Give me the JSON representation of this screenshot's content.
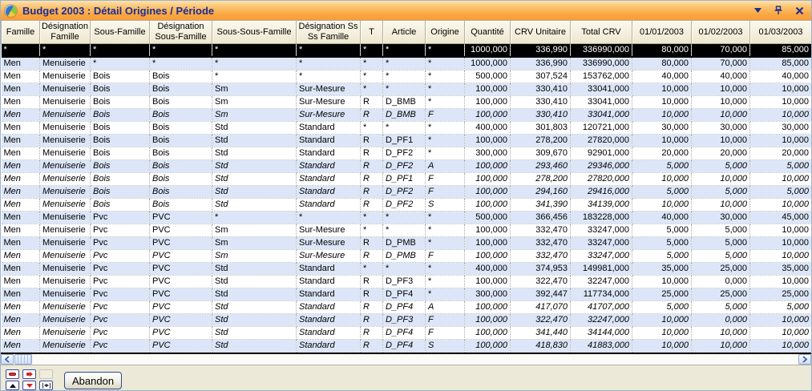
{
  "window": {
    "title": "Budget 2003 : Détail Origines / Période"
  },
  "icons": {
    "app_icon": "pie-chart",
    "menu_icon": "chevron-down",
    "pin_icon": "push-pin",
    "close_icon": "x",
    "scroll_left_icon": "chevron-left",
    "scroll_right_icon": "chevron-right",
    "nav_icons": [
      "red-dash",
      "red-arrow-right",
      "blank",
      "triangle-up",
      "red-triangle-down",
      "double-triangle-brackets"
    ]
  },
  "grid": {
    "columns": [
      "Famille",
      "Désignation Famille",
      "Sous-Famille",
      "Désignation Sous-Famille",
      "Sous-Sous-Famille",
      "Désignation Ss Ss Famille",
      "T",
      "Article",
      "Origine",
      "Quantité",
      "CRV Unitaire",
      "Total CRV",
      "01/01/2003",
      "01/02/2003",
      "01/03/2003"
    ],
    "rows": [
      {
        "style": "selected",
        "italic": false,
        "cells": [
          "*",
          "*",
          "*",
          "*",
          "*",
          "*",
          "*",
          "*",
          "*",
          "1000,000",
          "336,990",
          "336990,000",
          "80,000",
          "70,000",
          "85,000"
        ]
      },
      {
        "style": "blue",
        "italic": false,
        "cells": [
          "Men",
          "Menuiserie",
          "*",
          "*",
          "*",
          "*",
          "*",
          "*",
          "*",
          "1000,000",
          "336,990",
          "336990,000",
          "80,000",
          "70,000",
          "85,000"
        ]
      },
      {
        "style": "white",
        "italic": false,
        "cells": [
          "Men",
          "Menuiserie",
          "Bois",
          "Bois",
          "*",
          "*",
          "*",
          "*",
          "*",
          "500,000",
          "307,524",
          "153762,000",
          "40,000",
          "40,000",
          "40,000"
        ]
      },
      {
        "style": "blue",
        "italic": false,
        "cells": [
          "Men",
          "Menuiserie",
          "Bois",
          "Bois",
          "Sm",
          "Sur-Mesure",
          "*",
          "*",
          "*",
          "100,000",
          "330,410",
          "33041,000",
          "10,000",
          "10,000",
          "10,000"
        ]
      },
      {
        "style": "white",
        "italic": false,
        "cells": [
          "Men",
          "Menuiserie",
          "Bois",
          "Bois",
          "Sm",
          "Sur-Mesure",
          "R",
          "D_BMB",
          "*",
          "100,000",
          "330,410",
          "33041,000",
          "10,000",
          "10,000",
          "10,000"
        ]
      },
      {
        "style": "blue",
        "italic": true,
        "cells": [
          "Men",
          "Menuiserie",
          "Bois",
          "Bois",
          "Sm",
          "Sur-Mesure",
          "R",
          "D_BMB",
          "F",
          "100,000",
          "330,410",
          "33041,000",
          "10,000",
          "10,000",
          "10,000"
        ]
      },
      {
        "style": "white",
        "italic": false,
        "cells": [
          "Men",
          "Menuiserie",
          "Bois",
          "Bois",
          "Std",
          "Standard",
          "*",
          "*",
          "*",
          "400,000",
          "301,803",
          "120721,000",
          "30,000",
          "30,000",
          "30,000"
        ]
      },
      {
        "style": "blue",
        "italic": false,
        "cells": [
          "Men",
          "Menuiserie",
          "Bois",
          "Bois",
          "Std",
          "Standard",
          "R",
          "D_PF1",
          "*",
          "100,000",
          "278,200",
          "27820,000",
          "10,000",
          "10,000",
          "10,000"
        ]
      },
      {
        "style": "white",
        "italic": false,
        "cells": [
          "Men",
          "Menuiserie",
          "Bois",
          "Bois",
          "Std",
          "Standard",
          "R",
          "D_PF2",
          "*",
          "300,000",
          "309,670",
          "92901,000",
          "20,000",
          "20,000",
          "20,000"
        ]
      },
      {
        "style": "blue",
        "italic": true,
        "cells": [
          "Men",
          "Menuiserie",
          "Bois",
          "Bois",
          "Std",
          "Standard",
          "R",
          "D_PF2",
          "A",
          "100,000",
          "293,460",
          "29346,000",
          "5,000",
          "5,000",
          "5,000"
        ]
      },
      {
        "style": "white",
        "italic": true,
        "cells": [
          "Men",
          "Menuiserie",
          "Bois",
          "Bois",
          "Std",
          "Standard",
          "R",
          "D_PF1",
          "F",
          "100,000",
          "278,200",
          "27820,000",
          "10,000",
          "10,000",
          "10,000"
        ]
      },
      {
        "style": "blue",
        "italic": true,
        "cells": [
          "Men",
          "Menuiserie",
          "Bois",
          "Bois",
          "Std",
          "Standard",
          "R",
          "D_PF2",
          "F",
          "100,000",
          "294,160",
          "29416,000",
          "5,000",
          "5,000",
          "5,000"
        ]
      },
      {
        "style": "white",
        "italic": true,
        "cells": [
          "Men",
          "Menuiserie",
          "Bois",
          "Bois",
          "Std",
          "Standard",
          "R",
          "D_PF2",
          "S",
          "100,000",
          "341,390",
          "34139,000",
          "10,000",
          "10,000",
          "10,000"
        ]
      },
      {
        "style": "blue",
        "italic": false,
        "cells": [
          "Men",
          "Menuiserie",
          "Pvc",
          "PVC",
          "*",
          "*",
          "*",
          "*",
          "*",
          "500,000",
          "366,456",
          "183228,000",
          "40,000",
          "30,000",
          "45,000"
        ]
      },
      {
        "style": "white",
        "italic": false,
        "cells": [
          "Men",
          "Menuiserie",
          "Pvc",
          "PVC",
          "Sm",
          "Sur-Mesure",
          "*",
          "*",
          "*",
          "100,000",
          "332,470",
          "33247,000",
          "5,000",
          "5,000",
          "10,000"
        ]
      },
      {
        "style": "blue",
        "italic": false,
        "cells": [
          "Men",
          "Menuiserie",
          "Pvc",
          "PVC",
          "Sm",
          "Sur-Mesure",
          "R",
          "D_PMB",
          "*",
          "100,000",
          "332,470",
          "33247,000",
          "5,000",
          "5,000",
          "10,000"
        ]
      },
      {
        "style": "white",
        "italic": true,
        "cells": [
          "Men",
          "Menuiserie",
          "Pvc",
          "PVC",
          "Sm",
          "Sur-Mesure",
          "R",
          "D_PMB",
          "F",
          "100,000",
          "332,470",
          "33247,000",
          "5,000",
          "5,000",
          "10,000"
        ]
      },
      {
        "style": "blue",
        "italic": false,
        "cells": [
          "Men",
          "Menuiserie",
          "Pvc",
          "PVC",
          "Std",
          "Standard",
          "*",
          "*",
          "*",
          "400,000",
          "374,953",
          "149981,000",
          "35,000",
          "25,000",
          "35,000"
        ]
      },
      {
        "style": "white",
        "italic": false,
        "cells": [
          "Men",
          "Menuiserie",
          "Pvc",
          "PVC",
          "Std",
          "Standard",
          "R",
          "D_PF3",
          "*",
          "100,000",
          "322,470",
          "32247,000",
          "10,000",
          "0,000",
          "10,000"
        ]
      },
      {
        "style": "blue",
        "italic": false,
        "cells": [
          "Men",
          "Menuiserie",
          "Pvc",
          "PVC",
          "Std",
          "Standard",
          "R",
          "D_PF4",
          "*",
          "300,000",
          "392,447",
          "117734,000",
          "25,000",
          "25,000",
          "25,000"
        ]
      },
      {
        "style": "white",
        "italic": true,
        "cells": [
          "Men",
          "Menuiserie",
          "Pvc",
          "PVC",
          "Std",
          "Standard",
          "R",
          "D_PF4",
          "A",
          "100,000",
          "417,070",
          "41707,000",
          "5,000",
          "5,000",
          "5,000"
        ]
      },
      {
        "style": "blue",
        "italic": true,
        "cells": [
          "Men",
          "Menuiserie",
          "Pvc",
          "PVC",
          "Std",
          "Standard",
          "R",
          "D_PF3",
          "F",
          "100,000",
          "322,470",
          "32247,000",
          "10,000",
          "0,000",
          "10,000"
        ]
      },
      {
        "style": "white",
        "italic": true,
        "cells": [
          "Men",
          "Menuiserie",
          "Pvc",
          "PVC",
          "Std",
          "Standard",
          "R",
          "D_PF4",
          "F",
          "100,000",
          "341,440",
          "34144,000",
          "10,000",
          "10,000",
          "10,000"
        ]
      },
      {
        "style": "blue",
        "italic": true,
        "cells": [
          "Men",
          "Menuiserie",
          "Pvc",
          "PVC",
          "Std",
          "Standard",
          "R",
          "D_PF4",
          "S",
          "100,000",
          "418,830",
          "41883,000",
          "10,000",
          "10,000",
          "10,000"
        ]
      }
    ]
  },
  "footer": {
    "abandon_label": "Abandon"
  }
}
